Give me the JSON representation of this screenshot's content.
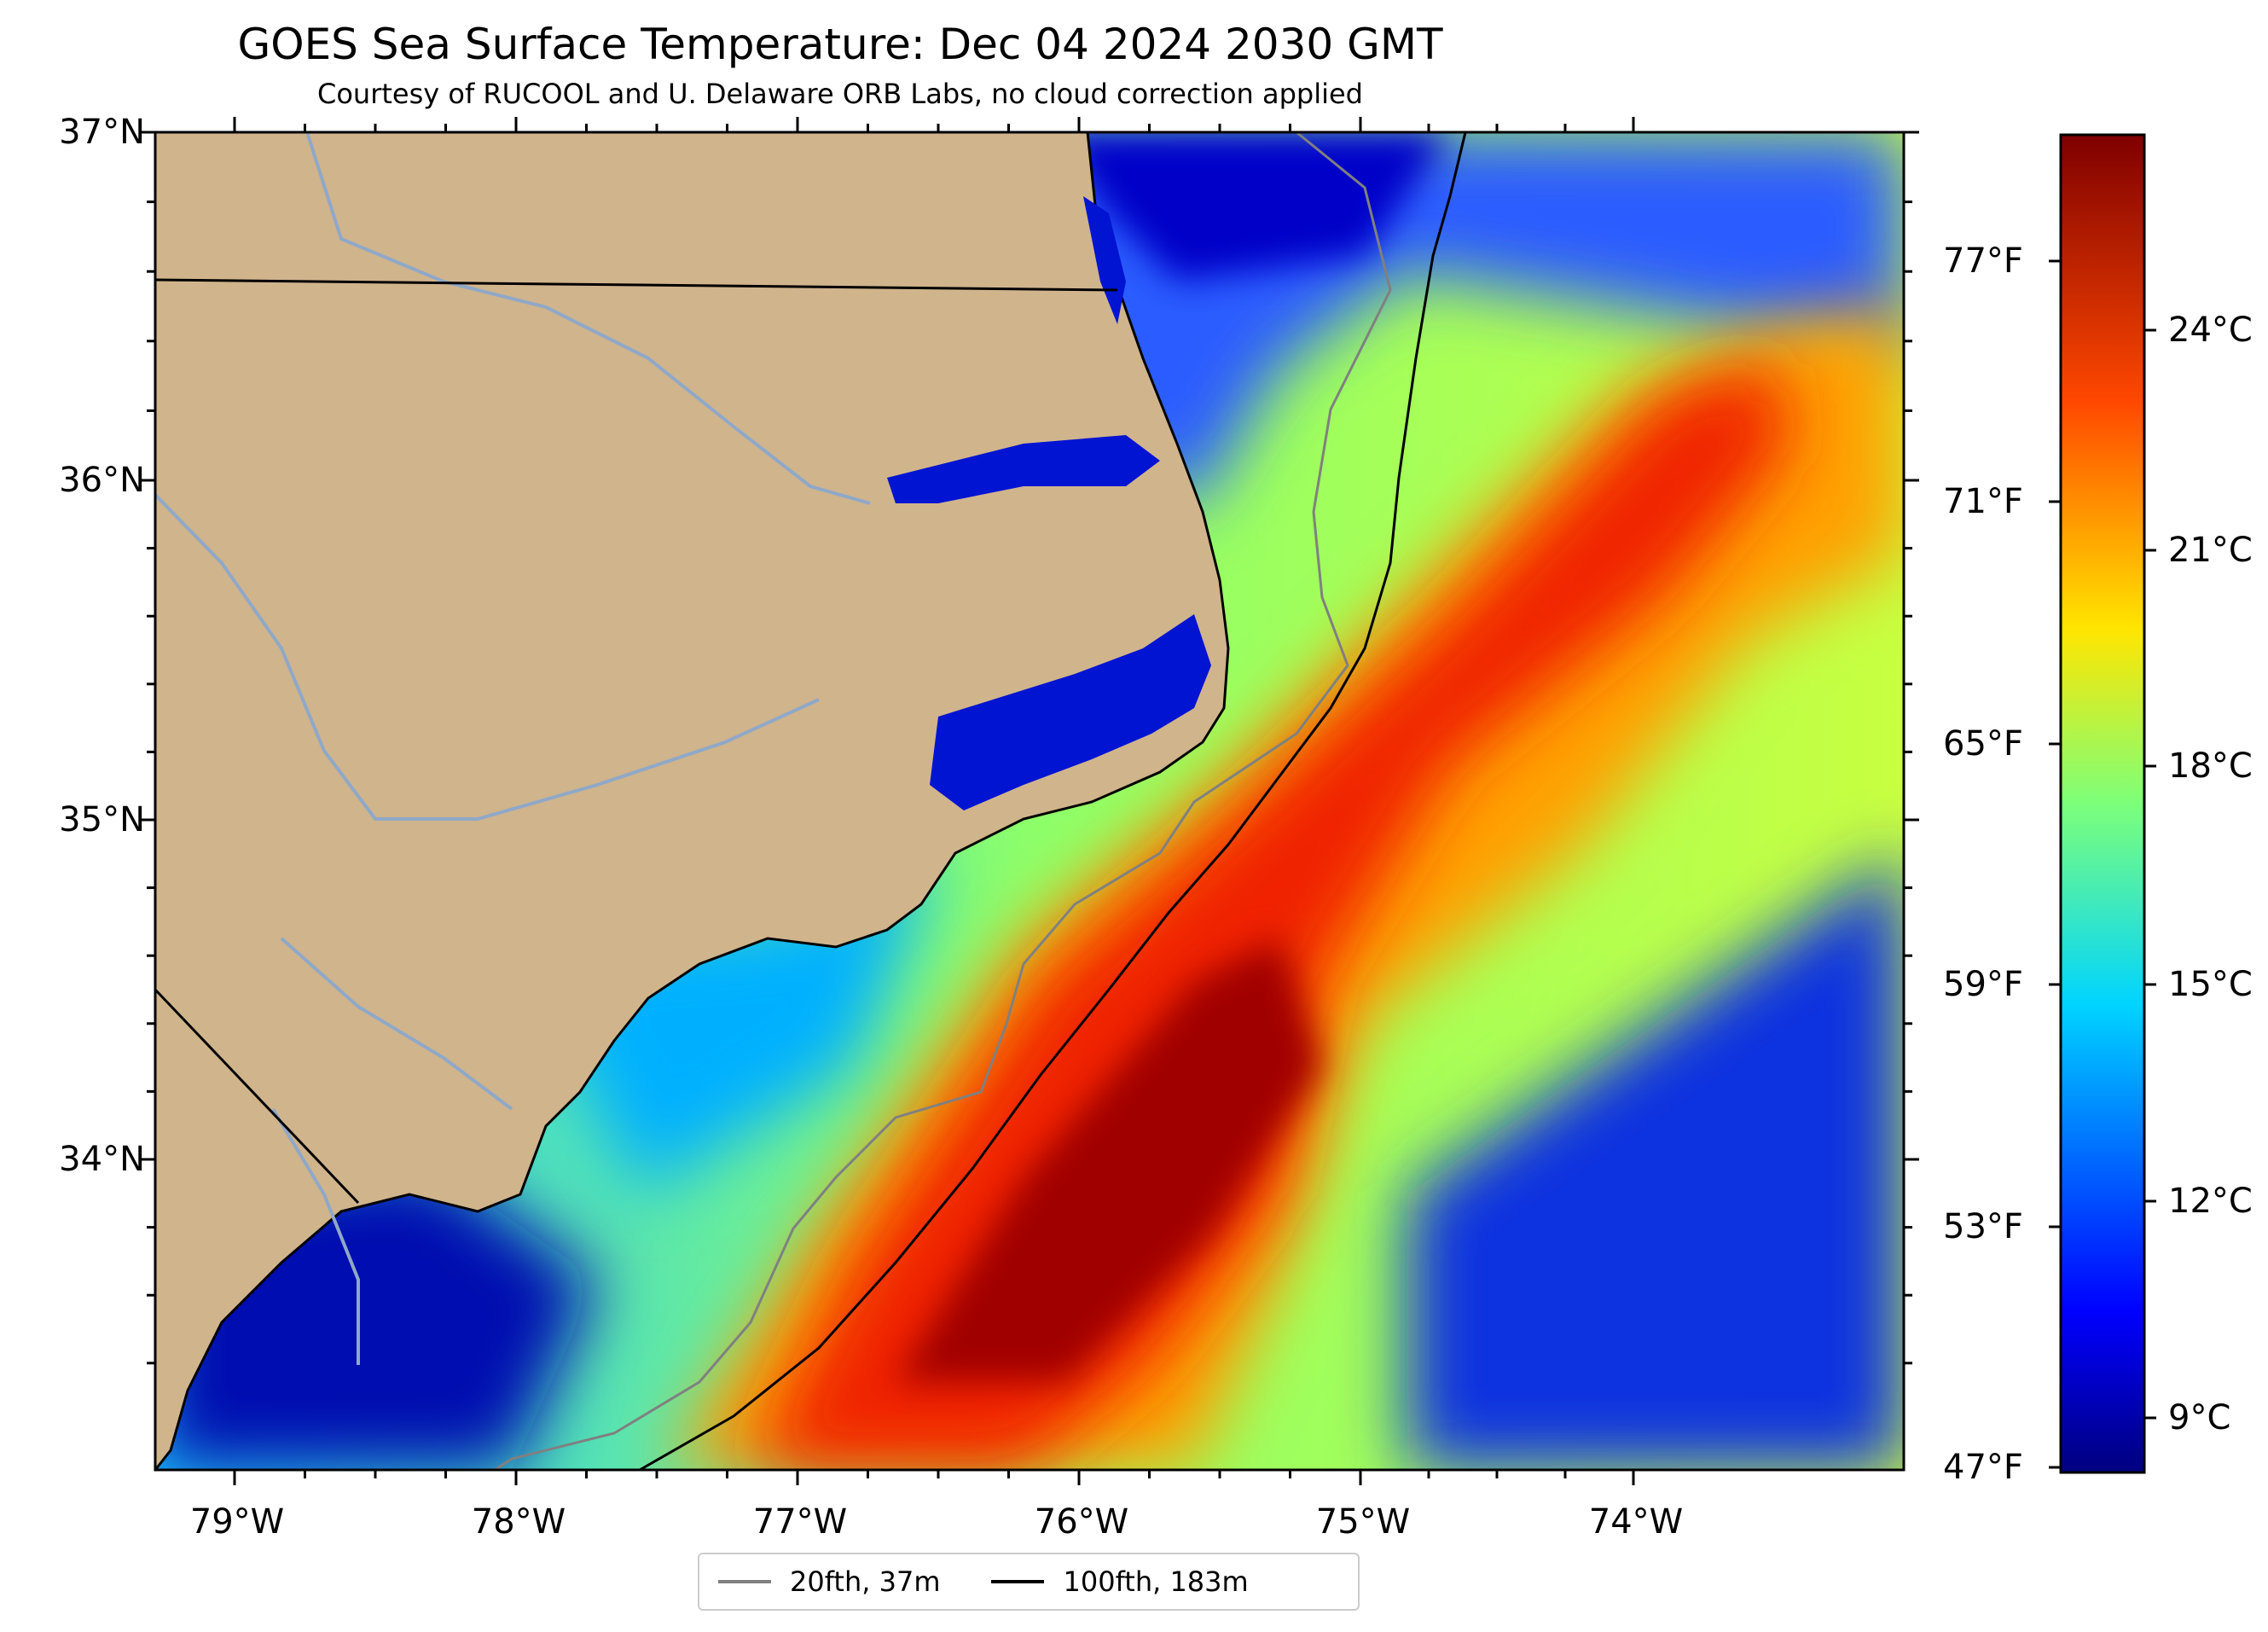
{
  "title": "GOES Sea Surface Temperature: Dec 04 2024 2030 GMT",
  "subtitle": "Courtesy of RUCOOL and U. Delaware ORB Labs, no cloud correction applied",
  "lat_labels": [
    "37°N",
    "36°N",
    "35°N",
    "34°N"
  ],
  "lon_labels": [
    "79°W",
    "78°W",
    "77°W",
    "76°W",
    "75°W",
    "74°W"
  ],
  "fahrenheit_labels": [
    "77°F",
    "71°F",
    "65°F",
    "59°F",
    "53°F",
    "47°F"
  ],
  "celsius_labels": [
    "24°C",
    "21°C",
    "18°C",
    "15°C",
    "12°C",
    "9°C"
  ],
  "legend": [
    {
      "label": "20fth, 37m",
      "color": "#808080"
    },
    {
      "label": "100fth, 183m",
      "color": "#000000"
    }
  ],
  "colors": {
    "land": "#d0b48c",
    "river": "#8fa8c8",
    "isobath_20": "#808080",
    "isobath_100": "#000000"
  },
  "colormap": "jet"
}
